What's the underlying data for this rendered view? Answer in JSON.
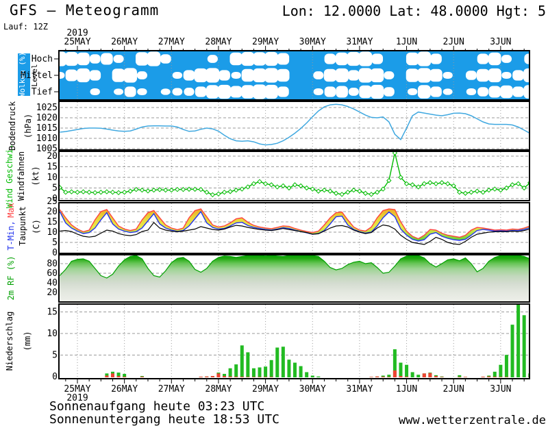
{
  "header": {
    "title": "GFS – Meteogramm",
    "location": "Lon: 12.0000 Lat: 48.0000 Hgt: 5",
    "run": "Lauf: 12Z"
  },
  "footer": {
    "sunrise": "Sonnenaufgang heute 03:23 UTC",
    "sunset": "Sonnenuntergang heute 18:53 UTC",
    "site": "www.wetterzentrale.de"
  },
  "time_axis": {
    "year": "2019",
    "labels": [
      "25MAY",
      "26MAY",
      "27MAY",
      "28MAY",
      "29MAY",
      "30MAY",
      "31MAY",
      "1JUN",
      "2JUN",
      "3JUN"
    ],
    "start_offset_days": -0.375
  },
  "colors": {
    "cloud_blue": "#1b9ce8",
    "pressure_line": "#3fa8e0",
    "wind_green": "#00bb00",
    "tmax_red": "#ff4040",
    "tmin_blue": "#2233ee",
    "dew_black": "#000000",
    "precip_green": "#22bb22",
    "precip_conv_red": "#ee4433",
    "grid_gray": "#9a9a9a",
    "rf_green": "#00a000"
  },
  "chart_data": [
    {
      "id": "clouds",
      "type": "heatmap",
      "label": "Wolken (%)",
      "sublabel": "Level",
      "levels": [
        "Hoch",
        "Mittel",
        "Tief"
      ],
      "step_hours": 6,
      "series": {
        "hoch": [
          95,
          90,
          80,
          50,
          70,
          40,
          10,
          85,
          95,
          50,
          10,
          5,
          10,
          40,
          20,
          80,
          90,
          85,
          90,
          70,
          10,
          5,
          20,
          60,
          80,
          90,
          95,
          60,
          20,
          10,
          80,
          95,
          60,
          20,
          10,
          5,
          60,
          80,
          40,
          20,
          60
        ],
        "mittel": [
          30,
          70,
          90,
          60,
          20,
          85,
          95,
          40,
          10,
          20,
          30,
          60,
          90,
          95,
          60,
          30,
          80,
          90,
          95,
          80,
          10,
          5,
          40,
          80,
          90,
          60,
          95,
          90,
          40,
          15,
          85,
          95,
          80,
          30,
          20,
          50,
          80,
          90,
          30,
          60,
          90
        ],
        "tief": [
          5,
          10,
          20,
          30,
          15,
          25,
          60,
          30,
          15,
          25,
          35,
          40,
          60,
          85,
          90,
          70,
          85,
          95,
          90,
          60,
          10,
          10,
          30,
          60,
          70,
          40,
          80,
          90,
          50,
          20,
          30,
          85,
          60,
          25,
          15,
          30,
          50,
          70,
          80,
          60,
          85
        ]
      }
    },
    {
      "id": "pressure",
      "type": "line",
      "label": "Bodendruck",
      "unit": "(hPa)",
      "yticks": [
        1005,
        1010,
        1015,
        1020,
        1025
      ],
      "ylim": [
        1004,
        1028
      ],
      "step_hours": 3,
      "values": [
        1013.0,
        1013.3,
        1013.8,
        1014.3,
        1014.8,
        1015.0,
        1015.0,
        1014.9,
        1014.5,
        1014.0,
        1013.6,
        1013.4,
        1013.6,
        1014.5,
        1015.5,
        1016.0,
        1016.1,
        1016.1,
        1016.0,
        1016.0,
        1015.5,
        1014.3,
        1013.4,
        1013.6,
        1014.4,
        1015.0,
        1014.6,
        1013.5,
        1011.5,
        1009.8,
        1008.8,
        1008.6,
        1008.8,
        1008.3,
        1007.3,
        1006.8,
        1007.0,
        1007.6,
        1008.8,
        1010.5,
        1012.5,
        1014.8,
        1017.5,
        1020.5,
        1023.3,
        1025.3,
        1026.3,
        1026.6,
        1026.3,
        1025.5,
        1024.3,
        1022.8,
        1021.3,
        1020.2,
        1020.0,
        1020.4,
        1018.0,
        1012.0,
        1009.4,
        1015.0,
        1021.0,
        1022.8,
        1022.3,
        1021.8,
        1021.3,
        1021.0,
        1021.5,
        1022.2,
        1022.3,
        1022.0,
        1021.0,
        1019.5,
        1018.0,
        1017.0,
        1016.8,
        1016.8,
        1016.8,
        1016.5,
        1015.5,
        1014.0,
        1012.4
      ]
    },
    {
      "id": "wind",
      "type": "line",
      "label": "Wind Geschwi.",
      "label2": "Windfahnen",
      "unit": "(kt)",
      "yticks": [
        0,
        5,
        10,
        15,
        20
      ],
      "ylim": [
        0,
        23
      ],
      "step_hours": 3,
      "values": [
        5.2,
        3.0,
        3.2,
        3.0,
        3.2,
        3.0,
        2.8,
        3.0,
        3.2,
        3.0,
        2.8,
        3.0,
        3.5,
        4.3,
        4.0,
        3.6,
        4.0,
        4.2,
        4.0,
        4.0,
        4.3,
        4.3,
        4.4,
        4.4,
        4.3,
        3.0,
        1.8,
        2.2,
        3.0,
        3.3,
        4.0,
        4.5,
        5.5,
        7.0,
        8.0,
        7.0,
        6.5,
        5.5,
        6.0,
        5.0,
        6.5,
        6.0,
        5.0,
        4.5,
        3.5,
        4.0,
        3.5,
        2.5,
        2.0,
        3.0,
        4.0,
        3.5,
        2.5,
        2.0,
        3.0,
        4.5,
        8.5,
        21.5,
        10.0,
        7.0,
        6.5,
        5.5,
        7.0,
        7.5,
        7.0,
        7.5,
        7.0,
        6.0,
        3.0,
        2.5,
        3.0,
        3.5,
        3.0,
        4.0,
        4.5,
        4.0,
        5.0,
        6.5,
        7.0,
        5.0,
        7.5
      ],
      "directions_deg": [
        210,
        230,
        250,
        240,
        235,
        250,
        265,
        275,
        260,
        250,
        245,
        255,
        265,
        280,
        285,
        290,
        280,
        270,
        255,
        250,
        260,
        270,
        285,
        295,
        305,
        300,
        290,
        100,
        90,
        105,
        115,
        110,
        95,
        85,
        75,
        65,
        55,
        70,
        85,
        95,
        100
      ]
    },
    {
      "id": "temperature",
      "type": "range-area",
      "label_min": "T-Min,",
      "label_max": "Max",
      "label_dew": "Taupunkt",
      "unit": "(C)",
      "yticks": [
        0,
        5,
        10,
        15,
        20,
        25
      ],
      "ylim": [
        0,
        24.5
      ],
      "step_hours": 3,
      "series": {
        "tmax": [
          21.0,
          17.0,
          13.5,
          11.5,
          10.2,
          11.0,
          16.0,
          20.0,
          21.0,
          17.0,
          13.0,
          11.5,
          10.8,
          11.5,
          16.0,
          19.5,
          20.5,
          17.0,
          13.5,
          12.0,
          11.2,
          12.0,
          17.0,
          20.5,
          21.3,
          17.5,
          13.5,
          12.5,
          13.0,
          14.5,
          16.5,
          17.0,
          14.8,
          13.3,
          12.5,
          12.0,
          11.7,
          12.3,
          13.0,
          12.8,
          11.8,
          11.0,
          10.3,
          9.8,
          10.5,
          13.5,
          17.0,
          19.5,
          19.8,
          16.0,
          12.5,
          11.0,
          10.5,
          12.5,
          17.0,
          20.5,
          21.3,
          21.0,
          15.0,
          10.5,
          8.0,
          6.8,
          8.5,
          11.3,
          11.0,
          9.5,
          8.5,
          8.0,
          7.5,
          8.5,
          11.0,
          12.3,
          12.0,
          11.5,
          11.0,
          11.2,
          11.0,
          11.5,
          11.3,
          12.0,
          13.0
        ],
        "tmin": [
          20.0,
          14.5,
          12.0,
          10.5,
          9.3,
          9.8,
          12.0,
          16.0,
          19.5,
          14.0,
          11.5,
          10.5,
          9.8,
          10.2,
          12.0,
          15.5,
          19.0,
          14.0,
          12.0,
          11.0,
          10.3,
          10.8,
          13.0,
          16.5,
          20.0,
          14.5,
          12.3,
          11.5,
          11.8,
          13.0,
          14.5,
          14.8,
          13.2,
          12.3,
          11.8,
          11.3,
          11.0,
          11.5,
          12.2,
          11.8,
          11.0,
          10.3,
          9.7,
          9.0,
          9.3,
          10.8,
          14.0,
          17.5,
          17.8,
          13.5,
          11.3,
          10.2,
          9.5,
          10.0,
          13.0,
          17.0,
          19.8,
          17.5,
          11.5,
          8.5,
          6.5,
          5.7,
          6.3,
          9.0,
          9.8,
          8.0,
          7.0,
          6.3,
          6.0,
          6.5,
          8.5,
          10.8,
          11.3,
          11.0,
          10.5,
          10.7,
          10.5,
          10.8,
          10.8,
          11.3,
          12.2
        ],
        "dewpoint": [
          10.5,
          10.8,
          10.3,
          9.0,
          8.0,
          7.6,
          8.0,
          9.5,
          11.0,
          10.5,
          9.3,
          8.6,
          8.3,
          8.8,
          10.3,
          11.0,
          14.7,
          12.0,
          11.0,
          10.5,
          10.2,
          10.5,
          11.0,
          11.5,
          12.7,
          12.0,
          11.3,
          11.0,
          11.5,
          12.5,
          13.3,
          13.0,
          12.3,
          11.8,
          11.3,
          11.0,
          10.8,
          11.2,
          11.8,
          11.3,
          10.8,
          10.3,
          9.8,
          9.0,
          9.2,
          10.5,
          12.0,
          13.0,
          13.2,
          12.5,
          11.0,
          10.0,
          9.3,
          9.8,
          12.0,
          13.5,
          13.0,
          11.5,
          8.5,
          6.5,
          5.0,
          4.5,
          4.0,
          5.5,
          7.5,
          6.5,
          5.0,
          4.3,
          4.0,
          5.5,
          7.5,
          9.0,
          9.5,
          10.0,
          10.2,
          10.3,
          10.2,
          10.5,
          10.3,
          10.8,
          11.5
        ]
      }
    },
    {
      "id": "humidity",
      "type": "area",
      "label": "2m RF (%)",
      "yticks": [
        20,
        40,
        60,
        80
      ],
      "ylim": [
        0,
        98.5
      ],
      "step_hours": 3,
      "values": [
        55,
        68,
        85,
        89,
        90,
        85,
        70,
        55,
        50,
        58,
        75,
        88,
        95,
        97,
        90,
        70,
        55,
        52,
        65,
        82,
        91,
        93,
        85,
        68,
        62,
        70,
        85,
        93,
        96,
        95,
        93,
        95,
        97,
        98,
        97,
        96,
        97,
        96,
        95,
        97,
        98,
        98,
        97,
        97,
        95,
        85,
        72,
        67,
        70,
        78,
        83,
        85,
        80,
        82,
        72,
        60,
        62,
        75,
        90,
        96,
        97,
        97,
        92,
        80,
        73,
        80,
        88,
        90,
        86,
        92,
        80,
        63,
        70,
        85,
        93,
        97,
        98,
        98,
        97,
        95,
        90
      ]
    },
    {
      "id": "precipitation",
      "type": "bar",
      "label": "Niederschlag",
      "unit": "(mm)",
      "yticks": [
        0,
        5,
        10,
        15
      ],
      "ylim": [
        0,
        17.3
      ],
      "step_hours": 3,
      "total": [
        0,
        0,
        0,
        0,
        0,
        0,
        0,
        0,
        0.9,
        1.3,
        1.1,
        0.8,
        0,
        0,
        0.3,
        0,
        0,
        0,
        0,
        0,
        0,
        0,
        0,
        0,
        0.15,
        0.2,
        0.3,
        1.1,
        0.8,
        2.1,
        3.0,
        7.4,
        5.8,
        2.1,
        2.3,
        2.5,
        4.0,
        6.9,
        7.1,
        4.1,
        3.4,
        2.6,
        1.2,
        0.4,
        0.2,
        0,
        0,
        0,
        0,
        0,
        0,
        0,
        0,
        0.1,
        0.2,
        0.4,
        0.6,
        6.5,
        3.4,
        2.9,
        1.2,
        0.6,
        0.9,
        1.1,
        0.5,
        0.2,
        0,
        0,
        0.5,
        0.1,
        0,
        0,
        0.15,
        0.4,
        1.3,
        2.9,
        5.2,
        12.2,
        17.0,
        14.4,
        0.9
      ],
      "convective": [
        0,
        0,
        0,
        0,
        0,
        0,
        0,
        0,
        0.4,
        0.9,
        0.3,
        0.15,
        0,
        0,
        0.15,
        0,
        0,
        0,
        0,
        0,
        0,
        0,
        0,
        0,
        0.15,
        0.2,
        0.3,
        0.9,
        0.3,
        0.2,
        0.15,
        0.15,
        0.1,
        0.1,
        0.1,
        0.1,
        0.1,
        0,
        0,
        0,
        0,
        0,
        0,
        0,
        0,
        0,
        0,
        0,
        0,
        0,
        0,
        0,
        0,
        0.1,
        0.2,
        0.15,
        0.1,
        1.6,
        0.3,
        0.15,
        0,
        0,
        0.9,
        1.0,
        0.3,
        0.1,
        0,
        0,
        0.1,
        0.1,
        0,
        0,
        0.15,
        0.2,
        0.15,
        0.1,
        0.1,
        0,
        0,
        0,
        0.1
      ]
    }
  ]
}
